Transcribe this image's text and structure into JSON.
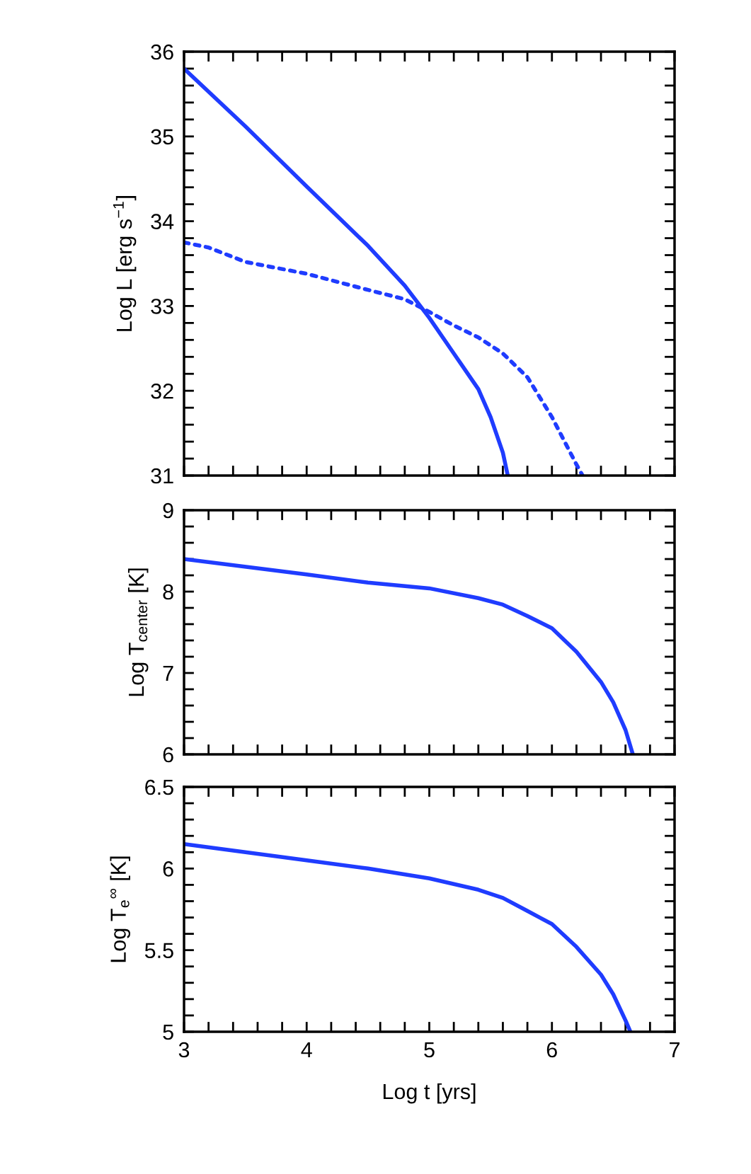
{
  "chart_data": [
    {
      "type": "line",
      "ylabel": "Log L [erg s$^{−1}$]",
      "xlim": [
        3,
        7
      ],
      "ylim": [
        31,
        36
      ],
      "tick_labels": "y",
      "xticks": [
        {
          "value": 3,
          "label": null
        },
        {
          "value": 3.2,
          "label": null
        },
        {
          "value": 3.4,
          "label": null
        },
        {
          "value": 3.6,
          "label": null
        },
        {
          "value": 3.8,
          "label": null
        },
        {
          "value": 4,
          "label": null
        },
        {
          "value": 4.2,
          "label": null
        },
        {
          "value": 4.4,
          "label": null
        },
        {
          "value": 4.6,
          "label": null
        },
        {
          "value": 4.8,
          "label": null
        },
        {
          "value": 5,
          "label": null
        },
        {
          "value": 5.2,
          "label": null
        },
        {
          "value": 5.4,
          "label": null
        },
        {
          "value": 5.6,
          "label": null
        },
        {
          "value": 5.8,
          "label": null
        },
        {
          "value": 6,
          "label": null
        },
        {
          "value": 6.2,
          "label": null
        },
        {
          "value": 6.4,
          "label": null
        },
        {
          "value": 6.6,
          "label": null
        },
        {
          "value": 6.8,
          "label": null
        },
        {
          "value": 7,
          "label": null
        }
      ],
      "yticks": [
        31,
        {
          "value": 31.2,
          "label": null
        },
        {
          "value": 31.4,
          "label": null
        },
        {
          "value": 31.6,
          "label": null
        },
        {
          "value": 31.8,
          "label": null
        },
        32,
        {
          "value": 32.2,
          "label": null
        },
        {
          "value": 32.4,
          "label": null
        },
        {
          "value": 32.6,
          "label": null
        },
        {
          "value": 32.8,
          "label": null
        },
        33,
        {
          "value": 33.2,
          "label": null
        },
        {
          "value": 33.4,
          "label": null
        },
        {
          "value": 33.6,
          "label": null
        },
        {
          "value": 33.8,
          "label": null
        },
        34,
        {
          "value": 34.2,
          "label": null
        },
        {
          "value": 34.4,
          "label": null
        },
        {
          "value": 34.6,
          "label": null
        },
        {
          "value": 34.8,
          "label": null
        },
        35,
        {
          "value": 35.2,
          "label": null
        },
        {
          "value": 35.4,
          "label": null
        },
        {
          "value": 35.6,
          "label": null
        },
        {
          "value": 35.8,
          "label": null
        },
        36
      ],
      "series": [
        {
          "color": "#1f3cff",
          "line_style": "solid",
          "x": [
            3,
            3.5,
            4,
            4.5,
            4.8,
            5,
            5.2,
            5.4,
            5.5,
            5.6,
            5.64
          ],
          "values": [
            35.8,
            35.12,
            34.41,
            33.71,
            33.24,
            32.86,
            32.44,
            32.02,
            31.69,
            31.27,
            31
          ]
        },
        {
          "color": "#1f3cff",
          "line_style": "dotted",
          "x": [
            3,
            3.2,
            3.5,
            4,
            4.5,
            4.8,
            5,
            5.2,
            5.4,
            5.6,
            5.8,
            6,
            6.1,
            6.2,
            6.25
          ],
          "values": [
            33.75,
            33.69,
            33.52,
            33.38,
            33.19,
            33.08,
            32.93,
            32.77,
            32.63,
            32.44,
            32.16,
            31.69,
            31.41,
            31.13,
            31
          ]
        }
      ]
    },
    {
      "type": "line",
      "ylabel": "Log T$_{center}$ [K]",
      "xlim": [
        3,
        7
      ],
      "ylim": [
        6,
        9
      ],
      "tick_labels": "y",
      "xticks": [
        {
          "value": 3,
          "label": null
        },
        {
          "value": 3.2,
          "label": null
        },
        {
          "value": 3.4,
          "label": null
        },
        {
          "value": 3.6,
          "label": null
        },
        {
          "value": 3.8,
          "label": null
        },
        {
          "value": 4,
          "label": null
        },
        {
          "value": 4.2,
          "label": null
        },
        {
          "value": 4.4,
          "label": null
        },
        {
          "value": 4.6,
          "label": null
        },
        {
          "value": 4.8,
          "label": null
        },
        {
          "value": 5,
          "label": null
        },
        {
          "value": 5.2,
          "label": null
        },
        {
          "value": 5.4,
          "label": null
        },
        {
          "value": 5.6,
          "label": null
        },
        {
          "value": 5.8,
          "label": null
        },
        {
          "value": 6,
          "label": null
        },
        {
          "value": 6.2,
          "label": null
        },
        {
          "value": 6.4,
          "label": null
        },
        {
          "value": 6.6,
          "label": null
        },
        {
          "value": 6.8,
          "label": null
        },
        {
          "value": 7,
          "label": null
        }
      ],
      "yticks": [
        6,
        {
          "value": 6.2,
          "label": null
        },
        {
          "value": 6.4,
          "label": null
        },
        {
          "value": 6.6,
          "label": null
        },
        {
          "value": 6.8,
          "label": null
        },
        7,
        {
          "value": 7.2,
          "label": null
        },
        {
          "value": 7.4,
          "label": null
        },
        {
          "value": 7.6,
          "label": null
        },
        {
          "value": 7.8,
          "label": null
        },
        8,
        {
          "value": 8.2,
          "label": null
        },
        {
          "value": 8.4,
          "label": null
        },
        {
          "value": 8.6,
          "label": null
        },
        {
          "value": 8.8,
          "label": null
        },
        9
      ],
      "series": [
        {
          "color": "#1f3cff",
          "line_style": "solid",
          "x": [
            3,
            4,
            4.5,
            5,
            5.4,
            5.6,
            5.8,
            6,
            6.2,
            6.4,
            6.5,
            6.6,
            6.66
          ],
          "values": [
            8.4,
            8.21,
            8.11,
            8.04,
            7.92,
            7.84,
            7.7,
            7.55,
            7.26,
            6.89,
            6.64,
            6.3,
            6
          ]
        }
      ]
    },
    {
      "type": "line",
      "ylabel": "Log T$_{e}$$^{∞}$ [K]",
      "xlabel": "Log t [yrs]",
      "xlim": [
        3,
        7
      ],
      "ylim": [
        5,
        6.5
      ],
      "xticks": [
        3,
        {
          "value": 3.2,
          "label": null
        },
        {
          "value": 3.4,
          "label": null
        },
        {
          "value": 3.6,
          "label": null
        },
        {
          "value": 3.8,
          "label": null
        },
        4,
        {
          "value": 4.2,
          "label": null
        },
        {
          "value": 4.4,
          "label": null
        },
        {
          "value": 4.6,
          "label": null
        },
        {
          "value": 4.8,
          "label": null
        },
        5,
        {
          "value": 5.2,
          "label": null
        },
        {
          "value": 5.4,
          "label": null
        },
        {
          "value": 5.6,
          "label": null
        },
        {
          "value": 5.8,
          "label": null
        },
        6,
        {
          "value": 6.2,
          "label": null
        },
        {
          "value": 6.4,
          "label": null
        },
        {
          "value": 6.6,
          "label": null
        },
        {
          "value": 6.8,
          "label": null
        },
        7
      ],
      "yticks": [
        5,
        {
          "value": 5.1,
          "label": null
        },
        {
          "value": 5.2,
          "label": null
        },
        {
          "value": 5.3,
          "label": null
        },
        {
          "value": 5.4,
          "label": null
        },
        5.5,
        {
          "value": 5.6,
          "label": null
        },
        {
          "value": 5.7,
          "label": null
        },
        {
          "value": 5.8,
          "label": null
        },
        {
          "value": 5.9,
          "label": null
        },
        6,
        {
          "value": 6.1,
          "label": null
        },
        {
          "value": 6.2,
          "label": null
        },
        {
          "value": 6.3,
          "label": null
        },
        {
          "value": 6.4,
          "label": null
        },
        6.5
      ],
      "series": [
        {
          "color": "#1f3cff",
          "line_style": "solid",
          "x": [
            3,
            4,
            4.5,
            5,
            5.4,
            5.6,
            5.8,
            6,
            6.2,
            6.4,
            6.5,
            6.6,
            6.64
          ],
          "values": [
            6.15,
            6.05,
            6.0,
            5.94,
            5.87,
            5.82,
            5.74,
            5.66,
            5.52,
            5.35,
            5.23,
            5.07,
            5
          ]
        }
      ]
    }
  ]
}
